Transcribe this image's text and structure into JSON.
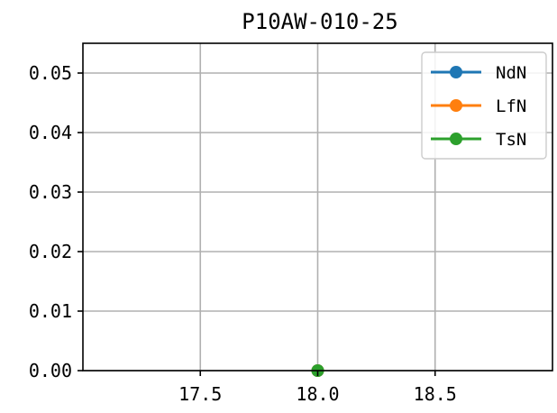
{
  "chart_data": {
    "type": "line",
    "title": "P10AW-010-25",
    "xlabel": "",
    "ylabel": "",
    "xlim": [
      17.0,
      19.0
    ],
    "ylim": [
      0.0,
      0.055
    ],
    "x_ticks": [
      17.5,
      18.0,
      18.5
    ],
    "x_tick_labels": [
      "17.5",
      "18.0",
      "18.5"
    ],
    "y_ticks": [
      0.0,
      0.01,
      0.02,
      0.03,
      0.04,
      0.05
    ],
    "y_tick_labels": [
      "0.00",
      "0.01",
      "0.02",
      "0.03",
      "0.04",
      "0.05"
    ],
    "grid": true,
    "legend_position": "top-right",
    "series": [
      {
        "name": "NdN",
        "color": "#1f77b4",
        "x": [
          18.0
        ],
        "y": [
          0.0
        ]
      },
      {
        "name": "LfN",
        "color": "#ff7f0e",
        "x": [
          18.0
        ],
        "y": [
          0.0
        ]
      },
      {
        "name": "TsN",
        "color": "#2ca02c",
        "x": [
          18.0
        ],
        "y": [
          0.0
        ]
      }
    ]
  }
}
